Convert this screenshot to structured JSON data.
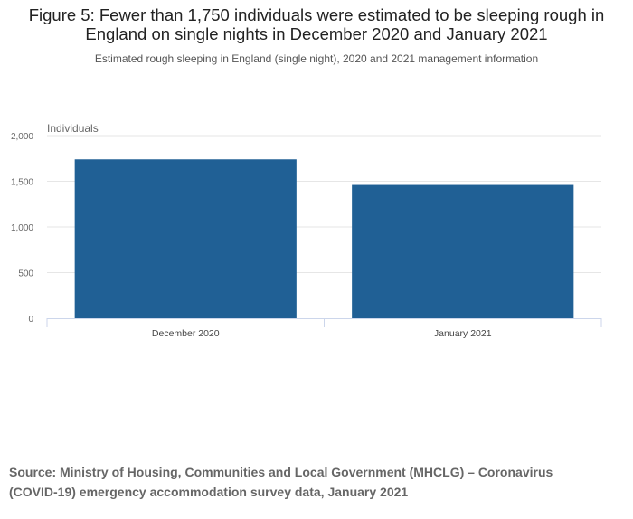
{
  "figure": {
    "title": "Figure 5: Fewer than 1,750 individuals were estimated to be sleeping rough in England on single nights in December 2020 and January 2021",
    "subtitle": "Estimated rough sleeping in England (single night), 2020 and 2021 management information",
    "source": "Source: Ministry of Housing, Communities and Local Government (MHCLG) – Coronavirus (COVID-19) emergency accommodation survey data, January 2021"
  },
  "chart_data": {
    "type": "bar",
    "title": "Figure 5: Fewer than 1,750 individuals were estimated to be sleeping rough in England on single nights in December 2020 and January 2021",
    "xlabel": "",
    "ylabel": "Individuals",
    "categories": [
      "December 2020",
      "January 2021"
    ],
    "values": [
      1740,
      1460
    ],
    "ylim": [
      0,
      2000
    ],
    "yticks": [
      0,
      500,
      1000,
      1500,
      2000
    ],
    "ytick_labels": [
      "0",
      "500",
      "1,000",
      "1,500",
      "2,000"
    ],
    "grid": true,
    "bar_color": "#206095",
    "grid_color": "#e6e6e6",
    "axis_color": "#ccd6eb"
  }
}
